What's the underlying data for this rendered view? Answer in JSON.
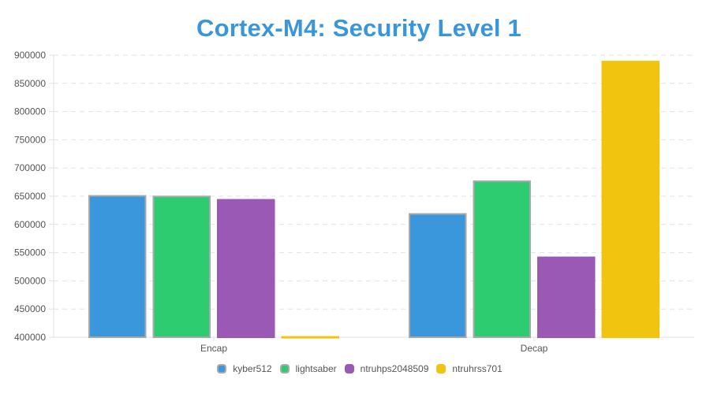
{
  "chart_data": {
    "type": "bar",
    "title": "Cortex-M4: Security Level 1",
    "categories": [
      "Encap",
      "Decap"
    ],
    "series": [
      {
        "name": "kyber512",
        "color": "#3a97db",
        "border": "#aaaaaa",
        "values": [
          652000,
          620000
        ]
      },
      {
        "name": "lightsaber",
        "color": "#2ecc71",
        "border": "#aaaaaa",
        "values": [
          651000,
          678000
        ]
      },
      {
        "name": "ntruhps2048509",
        "color": "#9b59b6",
        "border": "#9b59b6",
        "values": [
          645000,
          543000
        ]
      },
      {
        "name": "ntruhrss701",
        "color": "#f1c40f",
        "border": "#f1c40f",
        "values": [
          402000,
          890000
        ]
      }
    ],
    "ylim": [
      400000,
      900000
    ],
    "ytick_step": 50000,
    "yticks": [
      "400000",
      "450000",
      "500000",
      "550000",
      "600000",
      "650000",
      "700000",
      "750000",
      "800000",
      "850000",
      "900000"
    ],
    "grid": true,
    "legend_position": "bottom"
  }
}
